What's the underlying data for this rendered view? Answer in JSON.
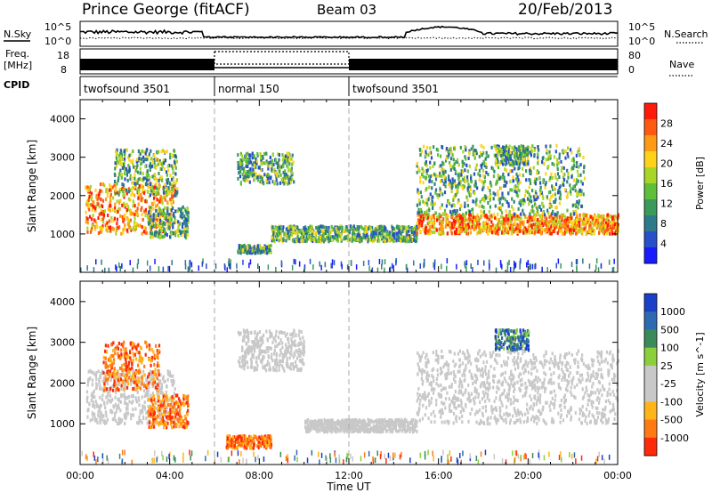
{
  "header": {
    "station": "Prince George (fitACF)",
    "beam": "Beam 03",
    "date": "20/Feb/2013"
  },
  "strips": {
    "nsky_label": "N.Sky",
    "nsearch_label": "N.Search",
    "freq_label_1": "Freq.",
    "freq_label_2": "[MHz]",
    "nave_label": "Nave",
    "cpid_label": "CPID",
    "left_ticks_noise": [
      "10^5",
      "10^0"
    ],
    "right_ticks_noise": [
      "10^5",
      "10^0"
    ],
    "left_ticks_freq": [
      "18",
      "8"
    ],
    "right_ticks_freq": [
      "80",
      "0"
    ],
    "cpid_segments": [
      "twofsound 3501",
      "normal 150",
      "twofsound 3501"
    ],
    "cpid_bounds_hours": [
      0,
      6,
      12,
      24
    ]
  },
  "chart_data": [
    {
      "type": "heatmap",
      "name": "power-panel",
      "ylabel": "Slant Range [km]",
      "xlabel": "",
      "xlim_hours": [
        0,
        24
      ],
      "ylim_km": [
        0,
        4500
      ],
      "yticks": [
        "4000",
        "3000",
        "2000",
        "1000"
      ],
      "ytick_values": [
        4000,
        3000,
        2000,
        1000
      ],
      "colorbar": {
        "label": "Power [dB]",
        "ticks": [
          "28",
          "24",
          "20",
          "16",
          "12",
          "8",
          "4"
        ],
        "tick_values": [
          28,
          24,
          20,
          16,
          12,
          8,
          4
        ],
        "range": [
          0,
          30
        ],
        "colors": [
          "#1a1aff",
          "#2850c8",
          "#2f7a8a",
          "#3a9a5a",
          "#5fbf3a",
          "#a8d628",
          "#ffd21a",
          "#ff9a14",
          "#ff5a10",
          "#ff1a0a"
        ]
      },
      "echo_regions": [
        {
          "t0": 0.2,
          "t1": 4.2,
          "r_start": 1000,
          "r_end": 2300,
          "level": "high"
        },
        {
          "t0": 1.5,
          "t1": 4.3,
          "r_start": 2000,
          "r_end": 3200,
          "level": "mid"
        },
        {
          "t0": 3.0,
          "t1": 4.8,
          "r_start": 900,
          "r_end": 1700,
          "level": "mid"
        },
        {
          "t0": 7.0,
          "t1": 9.5,
          "r_start": 2300,
          "r_end": 3100,
          "level": "mid"
        },
        {
          "t0": 8.5,
          "t1": 15.0,
          "r_start": 800,
          "r_end": 1200,
          "level": "mid"
        },
        {
          "t0": 7.0,
          "t1": 8.5,
          "r_start": 500,
          "r_end": 700,
          "level": "mid"
        },
        {
          "t0": 15.0,
          "t1": 24.0,
          "r_start": 1000,
          "r_end": 1500,
          "level": "high"
        },
        {
          "t0": 15.0,
          "t1": 22.5,
          "r_start": 1500,
          "r_end": 3300,
          "level": "mid"
        },
        {
          "t0": 18.5,
          "t1": 20.0,
          "r_start": 2800,
          "r_end": 3300,
          "level": "mid"
        }
      ]
    },
    {
      "type": "heatmap",
      "name": "velocity-panel",
      "ylabel": "Slant Range [km]",
      "xlabel": "Time UT",
      "xlim_hours": [
        0,
        24
      ],
      "ylim_km": [
        0,
        4500
      ],
      "yticks": [
        "4000",
        "3000",
        "2000",
        "1000"
      ],
      "ytick_values": [
        4000,
        3000,
        2000,
        1000
      ],
      "xticks": [
        "00:00",
        "04:00",
        "08:00",
        "12:00",
        "16:00",
        "20:00",
        "00:00"
      ],
      "xtick_values": [
        0,
        4,
        8,
        12,
        16,
        20,
        24
      ],
      "colorbar": {
        "label": "Velocity [m s^-1]",
        "ticks": [
          "1000",
          "500",
          "100",
          "25",
          "-25",
          "-100",
          "-500",
          "-1000"
        ],
        "colors": [
          "#1a3fc8",
          "#2e6ab0",
          "#3a8a5a",
          "#8ccf3c",
          "#c8c8c8",
          "#c8c8c8",
          "#ffb41a",
          "#ff7a14",
          "#ff2a0a"
        ]
      },
      "echo_regions": [
        {
          "t0": 0.2,
          "t1": 4.2,
          "r_start": 1000,
          "r_end": 2300,
          "level": "ground"
        },
        {
          "t0": 1.0,
          "t1": 3.5,
          "r_start": 1800,
          "r_end": 3000,
          "level": "negative"
        },
        {
          "t0": 3.0,
          "t1": 4.8,
          "r_start": 900,
          "r_end": 1700,
          "level": "negative"
        },
        {
          "t0": 7.0,
          "t1": 10.0,
          "r_start": 2300,
          "r_end": 3300,
          "level": "ground"
        },
        {
          "t0": 10.0,
          "t1": 15.0,
          "r_start": 800,
          "r_end": 1100,
          "level": "ground"
        },
        {
          "t0": 6.5,
          "t1": 8.5,
          "r_start": 400,
          "r_end": 700,
          "level": "negative"
        },
        {
          "t0": 15.0,
          "t1": 24.0,
          "r_start": 1000,
          "r_end": 2800,
          "level": "ground"
        },
        {
          "t0": 18.5,
          "t1": 20.0,
          "r_start": 2800,
          "r_end": 3300,
          "level": "positive"
        }
      ]
    }
  ]
}
